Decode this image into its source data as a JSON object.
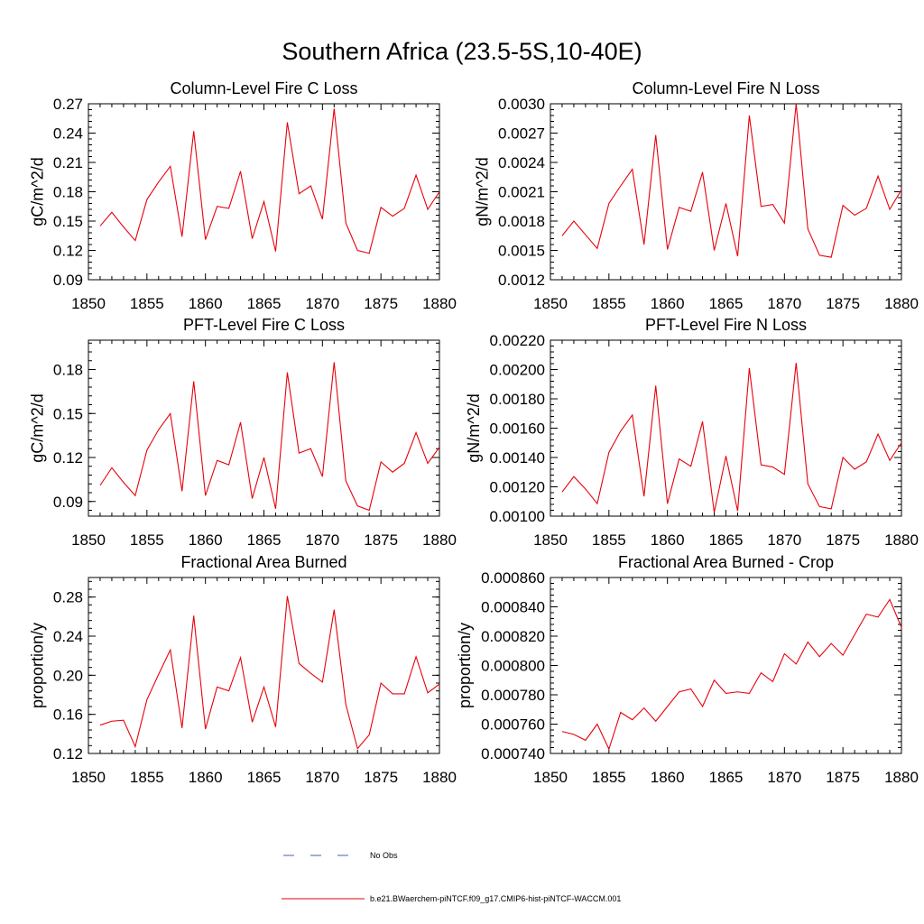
{
  "title": "Southern Africa (23.5-5S,10-40E)",
  "line_color": "#e8000b",
  "obs_color": "#4a5fa8",
  "legend": {
    "obs_label": "No Obs",
    "model_label": "b.e21.BWaerchem-piNTCF.f09_g17.CMIP6-hist-piNTCF-WACCM.001"
  },
  "chart_data": [
    {
      "type": "line",
      "title": "Column-Level Fire C Loss",
      "ylabel": "gC/m^2/d",
      "xlim": [
        1850,
        1880
      ],
      "ylim": [
        0.09,
        0.27
      ],
      "xticks": [
        1850,
        1855,
        1860,
        1865,
        1870,
        1875,
        1880
      ],
      "yticks": [
        0.09,
        0.12,
        0.15,
        0.18,
        0.21,
        0.24,
        0.27
      ],
      "ytick_labels": [
        "0.09",
        "0.12",
        "0.15",
        "0.18",
        "0.21",
        "0.24",
        "0.27"
      ],
      "x": [
        1851,
        1852,
        1853,
        1854,
        1855,
        1856,
        1857,
        1858,
        1859,
        1860,
        1861,
        1862,
        1863,
        1864,
        1865,
        1866,
        1867,
        1868,
        1869,
        1870,
        1871,
        1872,
        1873,
        1874,
        1875,
        1876,
        1877,
        1878,
        1879,
        1880
      ],
      "values": [
        0.145,
        0.159,
        0.144,
        0.13,
        0.172,
        0.19,
        0.206,
        0.134,
        0.242,
        0.131,
        0.165,
        0.163,
        0.201,
        0.132,
        0.17,
        0.119,
        0.251,
        0.178,
        0.186,
        0.152,
        0.265,
        0.148,
        0.12,
        0.117,
        0.164,
        0.155,
        0.163,
        0.197,
        0.162,
        0.18
      ]
    },
    {
      "type": "line",
      "title": "Column-Level Fire N Loss",
      "ylabel": "gN/m^2/d",
      "xlim": [
        1850,
        1880
      ],
      "ylim": [
        0.0012,
        0.003
      ],
      "xticks": [
        1850,
        1855,
        1860,
        1865,
        1870,
        1875,
        1880
      ],
      "yticks": [
        0.0012,
        0.0015,
        0.0018,
        0.0021,
        0.0024,
        0.0027,
        0.003
      ],
      "ytick_labels": [
        "0.0012",
        "0.0015",
        "0.0018",
        "0.0021",
        "0.0024",
        "0.0027",
        "0.0030"
      ],
      "x": [
        1851,
        1852,
        1853,
        1854,
        1855,
        1856,
        1857,
        1858,
        1859,
        1860,
        1861,
        1862,
        1863,
        1864,
        1865,
        1866,
        1867,
        1868,
        1869,
        1870,
        1871,
        1872,
        1873,
        1874,
        1875,
        1876,
        1877,
        1878,
        1879,
        1880
      ],
      "values": [
        0.00165,
        0.0018,
        0.00166,
        0.00152,
        0.00198,
        0.00216,
        0.00233,
        0.00156,
        0.00268,
        0.00151,
        0.00194,
        0.0019,
        0.0023,
        0.0015,
        0.00198,
        0.00144,
        0.00288,
        0.00195,
        0.00197,
        0.00178,
        0.003,
        0.00172,
        0.00145,
        0.00143,
        0.00196,
        0.00186,
        0.00193,
        0.00226,
        0.00192,
        0.00212
      ]
    },
    {
      "type": "line",
      "title": "PFT-Level Fire C Loss",
      "ylabel": "gC/m^2/d",
      "xlim": [
        1850,
        1880
      ],
      "ylim": [
        0.08,
        0.2
      ],
      "xticks": [
        1850,
        1855,
        1860,
        1865,
        1870,
        1875,
        1880
      ],
      "yticks": [
        0.09,
        0.12,
        0.15,
        0.18
      ],
      "ytick_labels": [
        "0.09",
        "0.12",
        "0.15",
        "0.18"
      ],
      "x": [
        1851,
        1852,
        1853,
        1854,
        1855,
        1856,
        1857,
        1858,
        1859,
        1860,
        1861,
        1862,
        1863,
        1864,
        1865,
        1866,
        1867,
        1868,
        1869,
        1870,
        1871,
        1872,
        1873,
        1874,
        1875,
        1876,
        1877,
        1878,
        1879,
        1880
      ],
      "values": [
        0.101,
        0.113,
        0.103,
        0.094,
        0.125,
        0.139,
        0.15,
        0.097,
        0.172,
        0.094,
        0.118,
        0.115,
        0.144,
        0.092,
        0.12,
        0.085,
        0.178,
        0.123,
        0.126,
        0.107,
        0.185,
        0.104,
        0.087,
        0.084,
        0.117,
        0.11,
        0.116,
        0.137,
        0.116,
        0.127
      ]
    },
    {
      "type": "line",
      "title": "PFT-Level Fire N Loss",
      "ylabel": "gN/m^2/d",
      "xlim": [
        1850,
        1880
      ],
      "ylim": [
        0.001,
        0.0022
      ],
      "xticks": [
        1850,
        1855,
        1860,
        1865,
        1870,
        1875,
        1880
      ],
      "yticks": [
        0.001,
        0.0012,
        0.0014,
        0.0016,
        0.0018,
        0.002,
        0.0022
      ],
      "ytick_labels": [
        "0.00100",
        "0.00120",
        "0.00140",
        "0.00160",
        "0.00180",
        "0.00200",
        "0.00220"
      ],
      "x": [
        1851,
        1852,
        1853,
        1854,
        1855,
        1856,
        1857,
        1858,
        1859,
        1860,
        1861,
        1862,
        1863,
        1864,
        1865,
        1866,
        1867,
        1868,
        1869,
        1870,
        1871,
        1872,
        1873,
        1874,
        1875,
        1876,
        1877,
        1878,
        1879,
        1880
      ],
      "values": [
        0.001165,
        0.00127,
        0.001185,
        0.001085,
        0.001435,
        0.00158,
        0.00169,
        0.001135,
        0.00189,
        0.001085,
        0.00139,
        0.00134,
        0.001645,
        0.001025,
        0.00141,
        0.001035,
        0.00201,
        0.00135,
        0.001335,
        0.001285,
        0.002045,
        0.00122,
        0.001065,
        0.00105,
        0.0014,
        0.00132,
        0.00137,
        0.00156,
        0.00138,
        0.0015
      ]
    },
    {
      "type": "line",
      "title": "Fractional Area Burned",
      "ylabel": "proportion/y",
      "xlim": [
        1850,
        1880
      ],
      "ylim": [
        0.12,
        0.3
      ],
      "xticks": [
        1850,
        1855,
        1860,
        1865,
        1870,
        1875,
        1880
      ],
      "yticks": [
        0.12,
        0.16,
        0.2,
        0.24,
        0.28
      ],
      "ytick_labels": [
        "0.12",
        "0.16",
        "0.20",
        "0.24",
        "0.28"
      ],
      "x": [
        1851,
        1852,
        1853,
        1854,
        1855,
        1856,
        1857,
        1858,
        1859,
        1860,
        1861,
        1862,
        1863,
        1864,
        1865,
        1866,
        1867,
        1868,
        1869,
        1870,
        1871,
        1872,
        1873,
        1874,
        1875,
        1876,
        1877,
        1878,
        1879,
        1880
      ],
      "values": [
        0.149,
        0.153,
        0.154,
        0.127,
        0.175,
        0.201,
        0.226,
        0.146,
        0.261,
        0.145,
        0.188,
        0.184,
        0.218,
        0.152,
        0.188,
        0.147,
        0.281,
        0.212,
        0.202,
        0.193,
        0.267,
        0.17,
        0.125,
        0.139,
        0.192,
        0.181,
        0.181,
        0.219,
        0.182,
        0.191
      ]
    },
    {
      "type": "line",
      "title": "Fractional Area Burned - Crop",
      "ylabel": "proportion/y",
      "xlim": [
        1850,
        1880
      ],
      "ylim": [
        0.00074,
        0.00086
      ],
      "xticks": [
        1850,
        1855,
        1860,
        1865,
        1870,
        1875,
        1880
      ],
      "yticks": [
        0.00074,
        0.00076,
        0.00078,
        0.0008,
        0.00082,
        0.00084,
        0.00086
      ],
      "ytick_labels": [
        "0.000740",
        "0.000760",
        "0.000780",
        "0.000800",
        "0.000820",
        "0.000840",
        "0.000860"
      ],
      "x": [
        1851,
        1852,
        1853,
        1854,
        1855,
        1856,
        1857,
        1858,
        1859,
        1860,
        1861,
        1862,
        1863,
        1864,
        1865,
        1866,
        1867,
        1868,
        1869,
        1870,
        1871,
        1872,
        1873,
        1874,
        1875,
        1876,
        1877,
        1878,
        1879,
        1880
      ],
      "values": [
        0.000755,
        0.000753,
        0.000749,
        0.00076,
        0.000743,
        0.000768,
        0.000763,
        0.000771,
        0.000762,
        0.000772,
        0.000782,
        0.000784,
        0.000772,
        0.00079,
        0.000781,
        0.000782,
        0.000781,
        0.000795,
        0.000789,
        0.000808,
        0.000801,
        0.000816,
        0.000806,
        0.000815,
        0.000807,
        0.000821,
        0.000835,
        0.000833,
        0.000845,
        0.000826
      ]
    }
  ]
}
